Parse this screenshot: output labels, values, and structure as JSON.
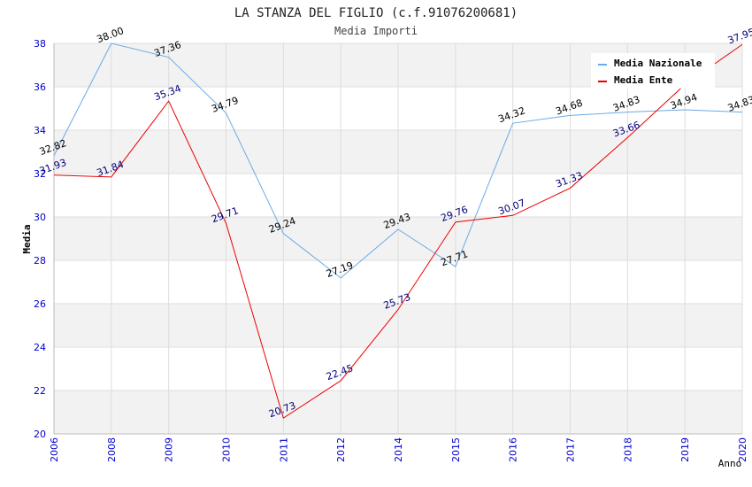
{
  "chart_data": {
    "type": "line",
    "title": "LA STANZA DEL FIGLIO (c.f.91076200681)",
    "subtitle": "Media Importi",
    "xlabel": "Anno",
    "ylabel": "Media",
    "categories": [
      "2006",
      "2008",
      "2009",
      "2010",
      "2011",
      "2012",
      "2014",
      "2015",
      "2016",
      "2017",
      "2018",
      "2019",
      "2020"
    ],
    "ylim": [
      20,
      38
    ],
    "yticks": [
      20,
      22,
      24,
      26,
      28,
      30,
      32,
      34,
      36,
      38
    ],
    "grid": true,
    "legend_position": "top-right",
    "series": [
      {
        "name": "Media Nazionale",
        "color": "#6aaae6",
        "label_color": "#000000",
        "values": [
          32.82,
          38.0,
          37.36,
          34.79,
          29.24,
          27.19,
          29.43,
          27.71,
          34.32,
          34.68,
          34.83,
          34.94,
          34.83
        ],
        "labels": [
          "32.82",
          "38.00",
          "37.36",
          "34.79",
          "29.24",
          "27.19",
          "29.43",
          "27.71",
          "34.32",
          "34.68",
          "34.83",
          "34.94",
          "34.83"
        ]
      },
      {
        "name": "Media Ente",
        "color": "#ee0000",
        "label_color": "#00007a",
        "values": [
          31.93,
          31.84,
          35.34,
          29.71,
          20.73,
          22.45,
          25.73,
          29.76,
          30.07,
          31.33,
          33.66,
          36.1,
          37.95
        ],
        "labels": [
          "31.93",
          "31.84",
          "35.34",
          "29.71",
          "20.73",
          "22.45",
          "25.73",
          "29.76",
          "30.07",
          "31.33",
          "33.66",
          "",
          "37.95"
        ]
      }
    ],
    "colors": {
      "axis_tick_text": "#0000cc",
      "band": "#f2f2f2",
      "grid": "#dddddd",
      "axis": "#bbbbbb",
      "title": "#222222",
      "subtitle": "#444444"
    }
  }
}
